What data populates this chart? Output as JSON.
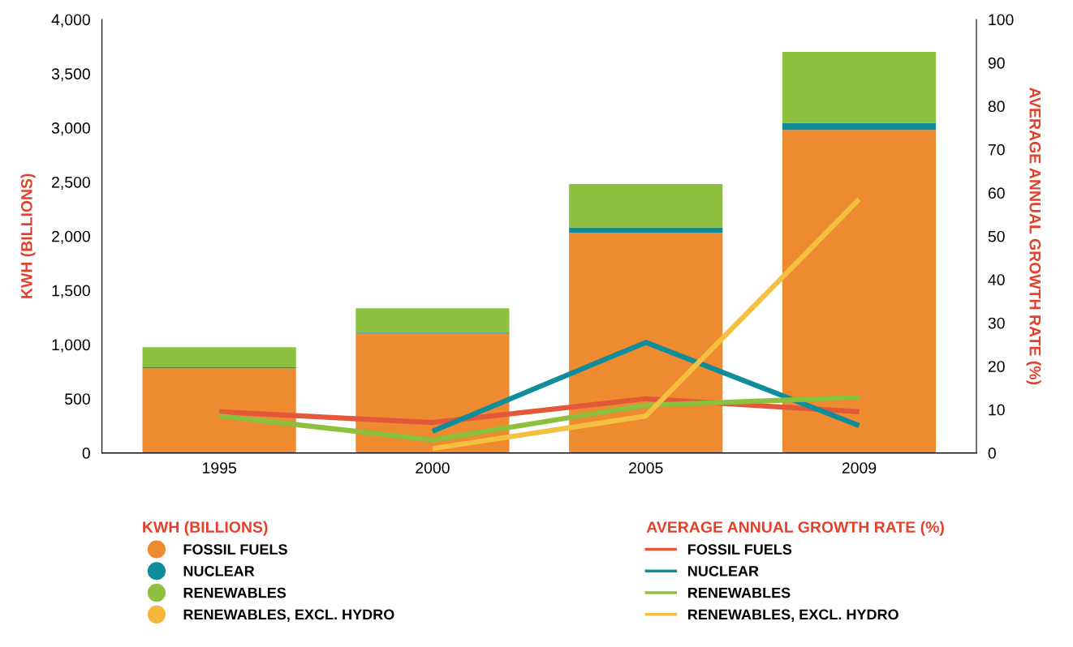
{
  "chart_data": {
    "type": "bar",
    "stacked": true,
    "categories": [
      "1995",
      "2000",
      "2005",
      "2009"
    ],
    "ylabel": "KWH (BILLIONS)",
    "y2label": "AVERAGE ANNUAL GROWTH RATE (%)",
    "ylim": [
      0,
      4000
    ],
    "yticks": [
      {
        "value": 0,
        "label": "0"
      },
      {
        "value": 500,
        "label": "500"
      },
      {
        "value": 1000,
        "label": "1,000"
      },
      {
        "value": 1500,
        "label": "1,500"
      },
      {
        "value": 2000,
        "label": "2,000"
      },
      {
        "value": 2500,
        "label": "2,500"
      },
      {
        "value": 3000,
        "label": "3,000"
      },
      {
        "value": 3500,
        "label": "3,500"
      },
      {
        "value": 4000,
        "label": "4,000"
      }
    ],
    "y2lim": [
      0,
      100
    ],
    "y2ticks": [
      0,
      10,
      20,
      30,
      40,
      50,
      60,
      70,
      80,
      90,
      100
    ],
    "grid": false,
    "legend": "bottom",
    "series": [
      {
        "name": "FOSSIL FUELS",
        "color": "#ee8a2f",
        "values": [
          780,
          1100,
          2030,
          2980
        ]
      },
      {
        "name": "NUCLEAR",
        "color": "#0f8d9a",
        "values": [
          10,
          10,
          50,
          65
        ]
      },
      {
        "name": "RENEWABLES",
        "color": "#8dc03f",
        "values": [
          185,
          225,
          400,
          655
        ]
      },
      {
        "name": "RENEWABLES, EXCL. HYDRO",
        "color": "#f5b83a",
        "values": [
          null,
          null,
          null,
          null
        ]
      },
      {
        "name": "FOSSIL FUELS",
        "type": "line",
        "axis": "y2",
        "color": "#e3583a",
        "values": [
          9.5,
          7,
          12.5,
          9.5
        ]
      },
      {
        "name": "NUCLEAR",
        "type": "line",
        "axis": "y2",
        "color": "#0f8d9a",
        "values": [
          null,
          5,
          25.5,
          6.3
        ]
      },
      {
        "name": "RENEWABLES",
        "type": "line",
        "axis": "y2",
        "color": "#8dc03f",
        "values": [
          8.5,
          3,
          11,
          12.8
        ]
      },
      {
        "name": "RENEWABLES, EXCL. HYDRO",
        "type": "line",
        "axis": "y2",
        "color": "#f5c040",
        "values": [
          null,
          1,
          8.5,
          58.5
        ]
      }
    ]
  }
}
